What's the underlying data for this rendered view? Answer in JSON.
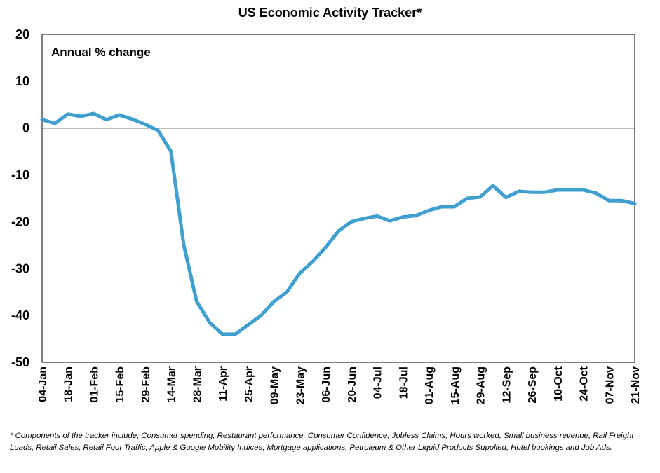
{
  "chart_data": {
    "type": "line",
    "title": "US Economic Activity Tracker*",
    "ylabel": "Annual % change",
    "xlabel": "",
    "ylim": [
      -50,
      20
    ],
    "yticks": [
      20,
      10,
      0,
      -10,
      -20,
      -30,
      -40,
      -50
    ],
    "x_tick_labels": [
      "04-Jan",
      "18-Jan",
      "01-Feb",
      "15-Feb",
      "29-Feb",
      "14-Mar",
      "28-Mar",
      "11-Apr",
      "25-Apr",
      "09-May",
      "23-May",
      "06-Jun",
      "20-Jun",
      "04-Jul",
      "18-Jul",
      "01-Aug",
      "15-Aug",
      "29-Aug",
      "12-Sep",
      "26-Sep",
      "10-Oct",
      "24-Oct",
      "07-Nov",
      "21-Nov"
    ],
    "grid": false,
    "line_color": "#3fa0d0",
    "series": [
      {
        "values": [
          1.8,
          1.0,
          3.0,
          2.5,
          3.1,
          1.8,
          2.8,
          1.9,
          0.8,
          -0.5,
          -5.0,
          -25.0,
          -37.0,
          -41.5,
          -44.0,
          -44.0,
          -42.0,
          -40.0,
          -37.0,
          -35.0,
          -31.0,
          -28.5,
          -25.5,
          -22.0,
          -20.0,
          -19.3,
          -18.8,
          -19.8,
          -19.0,
          -18.7,
          -17.6,
          -16.8,
          -16.8,
          -15.0,
          -14.7,
          -12.3,
          -14.8,
          -13.5,
          -13.7,
          -13.7,
          -13.2,
          -13.2,
          -13.2,
          -13.9,
          -15.5,
          -15.5,
          -16.1
        ]
      }
    ],
    "footnote": "* Components of the tracker include; Consumer spending, Restaurant performance, Consumer Confidence, Jobless Claims, Hours worked, Small business revenue, Rail Freight Loads, Retail Sales, Retail Foot Traffic, Apple & Google Mobility Indices, Mortgage applications, Petroleum  & Other Liquid Products Supplied, Hotel bookings and Job Ads."
  }
}
